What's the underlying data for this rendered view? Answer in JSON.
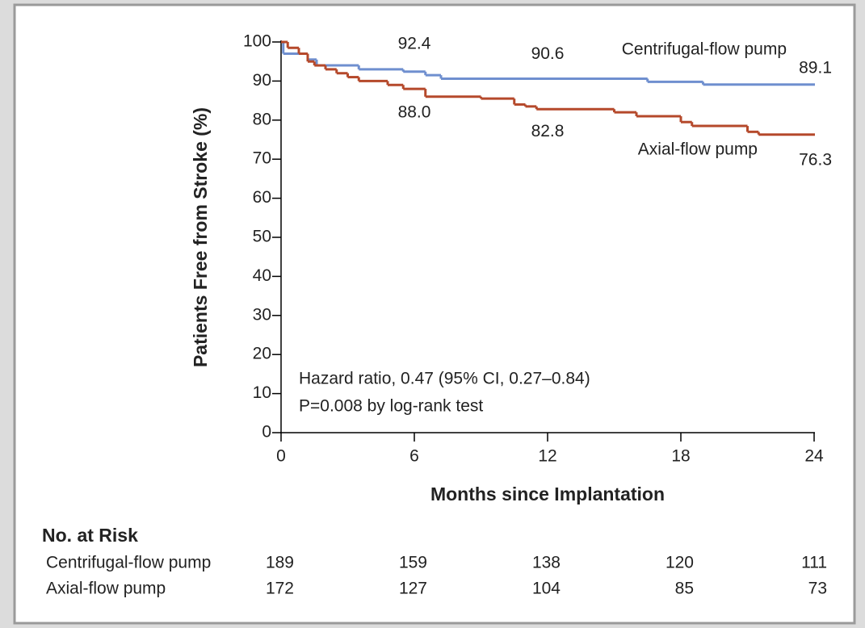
{
  "chart_data": {
    "type": "step",
    "ylabel": "Patients Free from Stroke (%)",
    "xlabel": "Months since Implantation",
    "xlim": [
      0,
      24
    ],
    "xticks": [
      0,
      6,
      12,
      18,
      24
    ],
    "ylim": [
      0,
      100
    ],
    "yticks": [
      0,
      10,
      20,
      30,
      40,
      50,
      60,
      70,
      80,
      90,
      100
    ],
    "series": [
      {
        "name": "Centrifugal-flow pump",
        "color": "#6f8fcf",
        "x": [
          0,
          0.1,
          1.2,
          1.6,
          3.5,
          5.5,
          6.5,
          7.2,
          16.5,
          19,
          24
        ],
        "values": [
          100,
          97,
          95.5,
          94,
          93,
          92.4,
          91.5,
          90.6,
          89.8,
          89.1,
          89.1
        ],
        "labels": [
          {
            "x": 6,
            "value": 92.4
          },
          {
            "x": 12,
            "value": 90.6
          },
          {
            "x": 24,
            "value": 89.1
          }
        ],
        "at_risk": [
          189,
          159,
          138,
          120,
          111
        ]
      },
      {
        "name": "Axial-flow pump",
        "color": "#b5492b",
        "x": [
          0,
          0.3,
          0.8,
          1.2,
          1.5,
          2,
          2.5,
          3,
          3.5,
          4.8,
          5.5,
          6.5,
          9,
          10.5,
          11,
          11.5,
          15,
          16,
          18,
          18.5,
          21,
          21.5,
          24
        ],
        "values": [
          100,
          98.5,
          97,
          95,
          94,
          93,
          92,
          91,
          90,
          89,
          88,
          86,
          85.5,
          84,
          83.5,
          82.8,
          82,
          81,
          79.5,
          78.5,
          77,
          76.3,
          76.3
        ],
        "labels": [
          {
            "x": 6,
            "value": 88,
            "label": "88.0"
          },
          {
            "x": 12,
            "value": 82.8
          },
          {
            "x": 24,
            "value": 76.3
          }
        ],
        "at_risk": [
          172,
          127,
          104,
          85,
          73
        ]
      }
    ],
    "annotations": [
      "Hazard ratio, 0.47 (95% CI, 0.27–0.84)",
      "P=0.008 by log-rank test"
    ],
    "at_risk_title": "No. at Risk"
  }
}
